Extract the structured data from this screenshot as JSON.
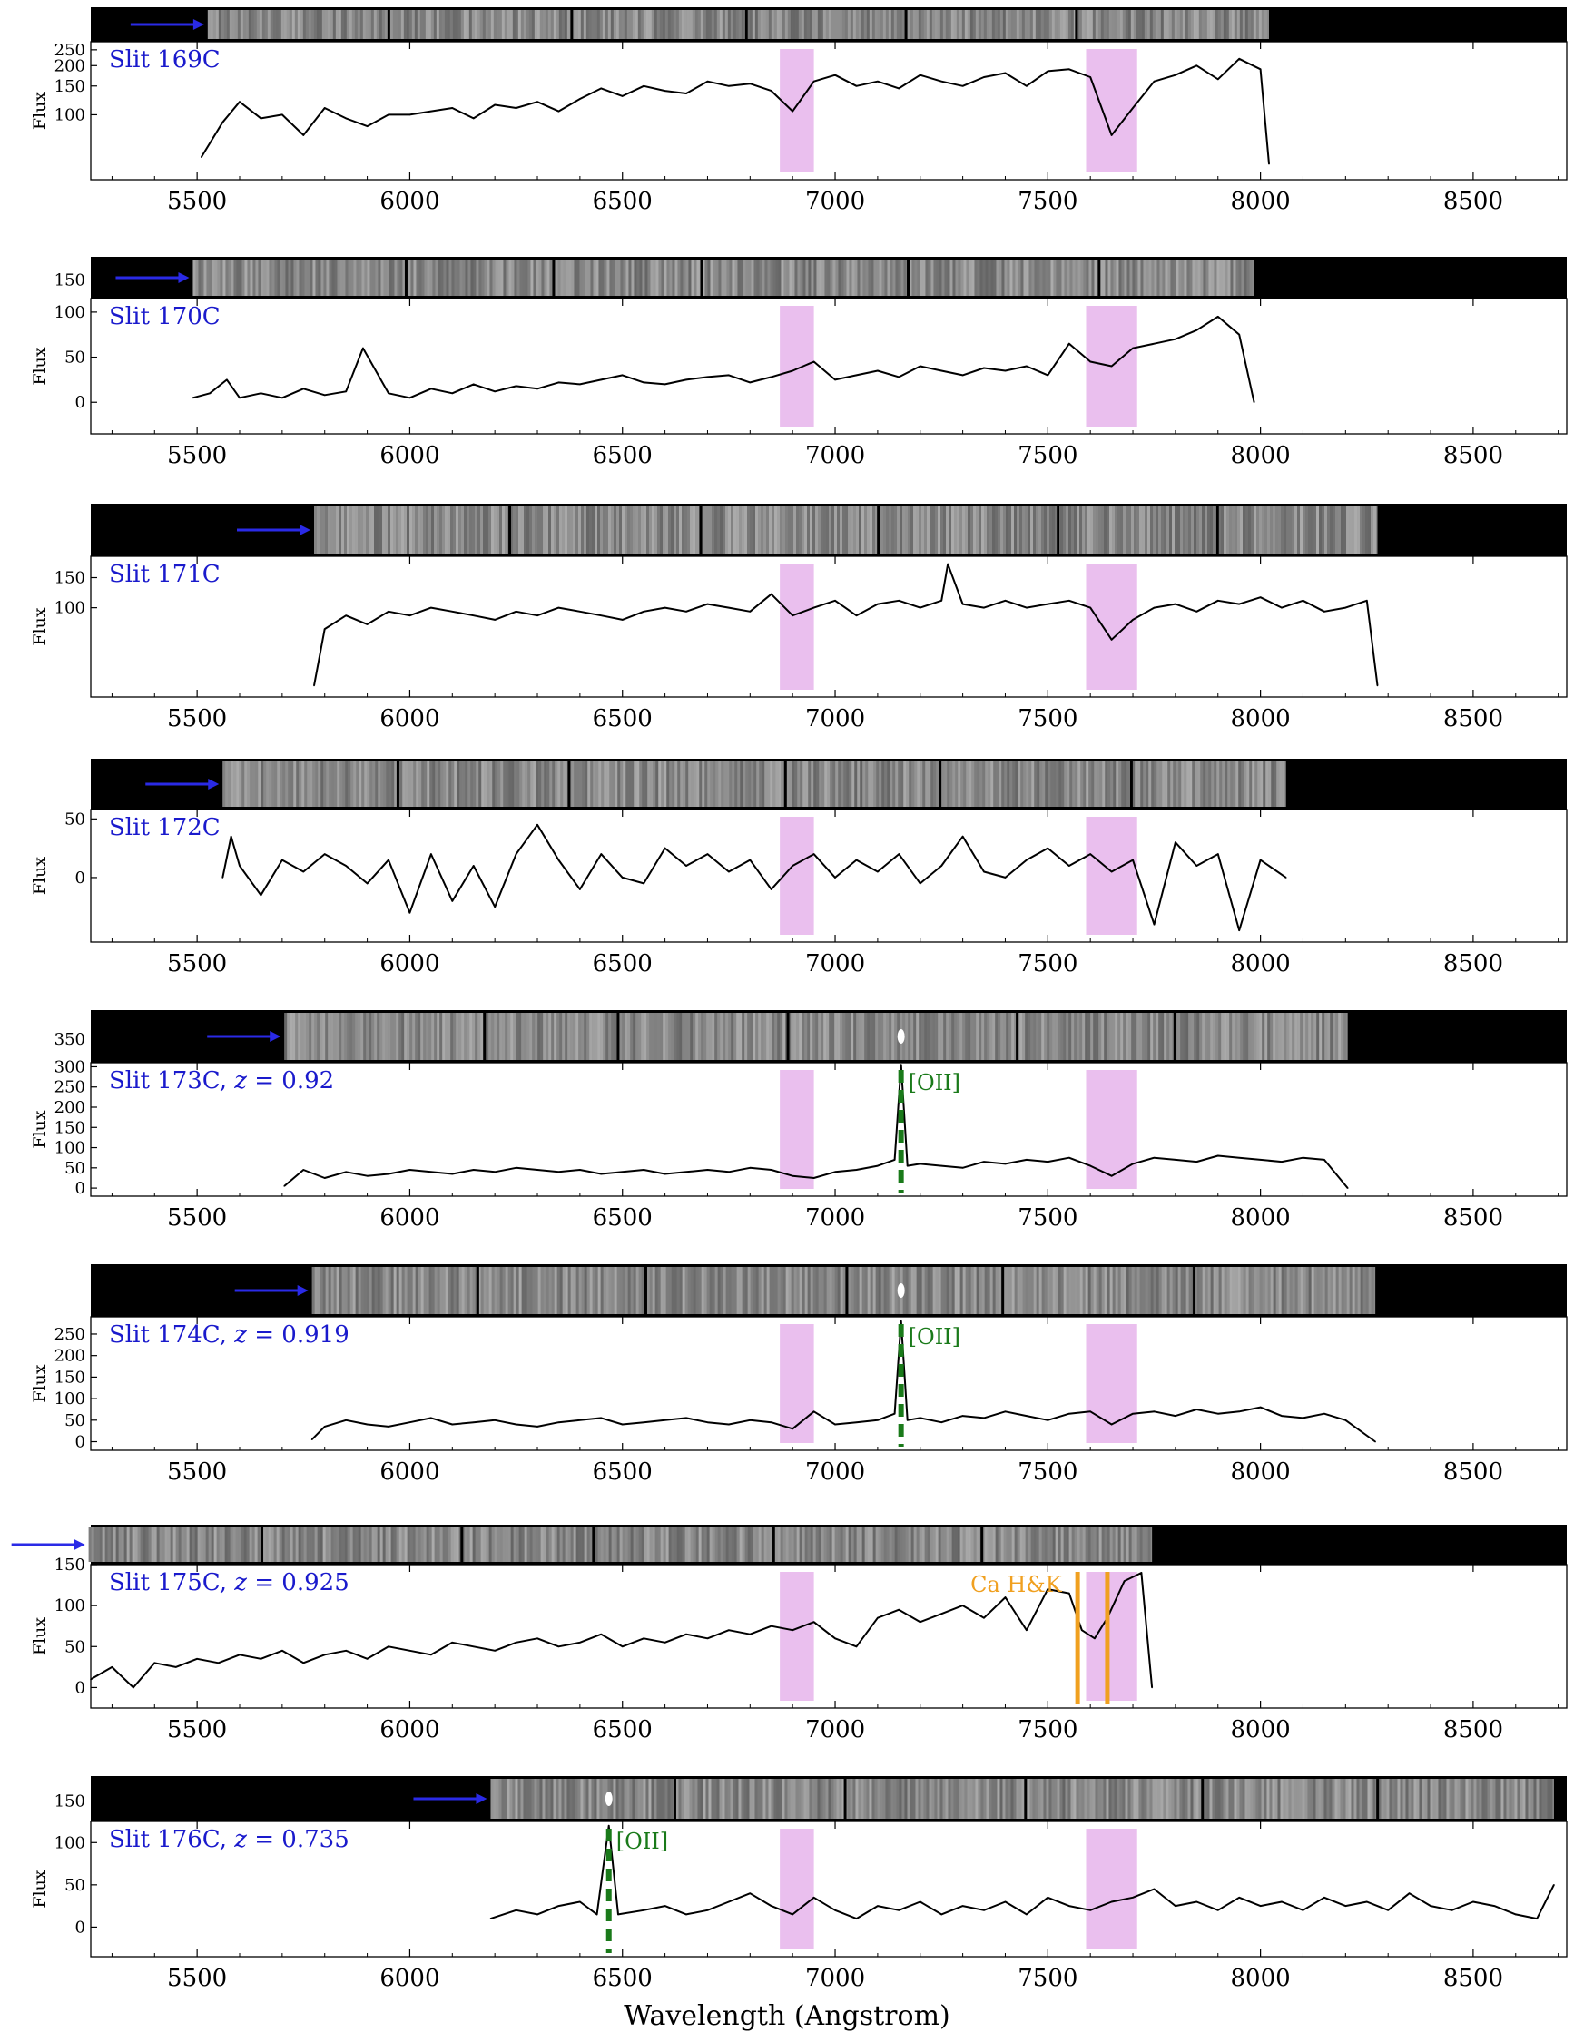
{
  "figure": {
    "xlabel": "Wavelength (Angstrom)",
    "colors": {
      "spectrum": "#000000",
      "telluric_band": "#e8b8ec",
      "slit_label": "#1a1acc",
      "arrow": "#2a2ae6",
      "oii_marker": "#1a7a1a",
      "cahk_marker": "#f0a020",
      "twod_background": "#000000",
      "twod_strip": "#8a8a8a"
    }
  },
  "chart_data": [
    {
      "type": "line",
      "title": "Slit 169C",
      "ylabel": "Flux",
      "yscale": "log",
      "xlim": [
        5250,
        8720
      ],
      "ylim": [
        40,
        280
      ],
      "yticks": [
        100,
        150,
        200,
        250
      ],
      "xticks": [
        5500,
        6000,
        6500,
        7000,
        7500,
        8000,
        8500
      ],
      "telluric_bands": [
        [
          6870,
          6950
        ],
        [
          7590,
          7710
        ]
      ],
      "twod_extent": [
        5525,
        8020
      ],
      "arrow_x": 5525,
      "x": [
        5510,
        5560,
        5600,
        5650,
        5700,
        5750,
        5800,
        5850,
        5900,
        5950,
        6000,
        6050,
        6100,
        6150,
        6200,
        6250,
        6300,
        6350,
        6400,
        6450,
        6500,
        6550,
        6600,
        6650,
        6700,
        6750,
        6800,
        6850,
        6900,
        6950,
        7000,
        7050,
        7100,
        7150,
        7200,
        7250,
        7300,
        7350,
        7400,
        7450,
        7500,
        7550,
        7600,
        7650,
        7700,
        7750,
        7800,
        7850,
        7900,
        7950,
        8000,
        8020
      ],
      "y": [
        55,
        90,
        120,
        95,
        100,
        75,
        110,
        95,
        85,
        100,
        100,
        105,
        110,
        95,
        115,
        110,
        120,
        105,
        125,
        145,
        130,
        150,
        140,
        135,
        160,
        150,
        155,
        140,
        105,
        160,
        175,
        150,
        160,
        145,
        175,
        160,
        150,
        170,
        180,
        150,
        185,
        190,
        170,
        75,
        110,
        160,
        175,
        200,
        165,
        220,
        190,
        50
      ]
    },
    {
      "type": "line",
      "title": "Slit 170C",
      "ylabel": "Flux",
      "xlim": [
        5250,
        8720
      ],
      "ylim": [
        -35,
        115
      ],
      "yticks": [
        0,
        50,
        100,
        150
      ],
      "xticks": [
        5500,
        6000,
        6500,
        7000,
        7500,
        8000,
        8500
      ],
      "telluric_bands": [
        [
          6870,
          6950
        ],
        [
          7590,
          7710
        ]
      ],
      "twod_extent": [
        5490,
        7985
      ],
      "arrow_x": 5490,
      "x": [
        5490,
        5530,
        5570,
        5600,
        5650,
        5700,
        5750,
        5800,
        5850,
        5890,
        5950,
        6000,
        6050,
        6100,
        6150,
        6200,
        6250,
        6300,
        6350,
        6400,
        6450,
        6500,
        6550,
        6600,
        6650,
        6700,
        6750,
        6800,
        6850,
        6900,
        6950,
        7000,
        7050,
        7100,
        7150,
        7200,
        7250,
        7300,
        7350,
        7400,
        7450,
        7500,
        7550,
        7600,
        7650,
        7700,
        7750,
        7800,
        7850,
        7900,
        7950,
        7985
      ],
      "y": [
        5,
        10,
        25,
        5,
        10,
        5,
        15,
        8,
        12,
        60,
        10,
        5,
        15,
        10,
        20,
        12,
        18,
        15,
        22,
        20,
        25,
        30,
        22,
        20,
        25,
        28,
        30,
        22,
        28,
        35,
        45,
        25,
        30,
        35,
        28,
        40,
        35,
        30,
        38,
        35,
        40,
        30,
        65,
        45,
        40,
        60,
        65,
        70,
        80,
        95,
        75,
        0
      ]
    },
    {
      "type": "line",
      "title": "Slit 171C",
      "ylabel": "Flux",
      "yscale": "log",
      "xlim": [
        5250,
        8720
      ],
      "ylim": [
        30,
        200
      ],
      "yticks": [
        100,
        150
      ],
      "xticks": [
        5500,
        6000,
        6500,
        7000,
        7500,
        8000,
        8500
      ],
      "telluric_bands": [
        [
          6870,
          6950
        ],
        [
          7590,
          7710
        ]
      ],
      "twod_extent": [
        5775,
        8275
      ],
      "arrow_x": 5775,
      "x": [
        5775,
        5800,
        5850,
        5900,
        5950,
        6000,
        6050,
        6100,
        6150,
        6200,
        6250,
        6300,
        6350,
        6400,
        6450,
        6500,
        6550,
        6600,
        6650,
        6700,
        6750,
        6800,
        6850,
        6900,
        6950,
        7000,
        7050,
        7100,
        7150,
        7200,
        7250,
        7265,
        7300,
        7350,
        7400,
        7450,
        7500,
        7550,
        7600,
        7650,
        7700,
        7750,
        7800,
        7850,
        7900,
        7950,
        8000,
        8050,
        8100,
        8150,
        8200,
        8250,
        8275
      ],
      "y": [
        35,
        75,
        90,
        80,
        95,
        90,
        100,
        95,
        90,
        85,
        95,
        90,
        100,
        95,
        90,
        85,
        95,
        100,
        95,
        105,
        100,
        95,
        120,
        90,
        100,
        110,
        90,
        105,
        110,
        100,
        110,
        180,
        105,
        100,
        110,
        100,
        105,
        110,
        100,
        65,
        85,
        100,
        105,
        95,
        110,
        105,
        115,
        100,
        110,
        95,
        100,
        110,
        35
      ]
    },
    {
      "type": "line",
      "title": "Slit 172C",
      "ylabel": "Flux",
      "xlim": [
        5250,
        8720
      ],
      "ylim": [
        -55,
        58
      ],
      "yticks": [
        0,
        50
      ],
      "xticks": [
        5500,
        6000,
        6500,
        7000,
        7500,
        8000,
        8500
      ],
      "telluric_bands": [
        [
          6870,
          6950
        ],
        [
          7590,
          7710
        ]
      ],
      "twod_extent": [
        5560,
        8060
      ],
      "arrow_x": 5560,
      "x": [
        5560,
        5580,
        5600,
        5650,
        5700,
        5750,
        5800,
        5850,
        5900,
        5950,
        6000,
        6050,
        6100,
        6150,
        6200,
        6250,
        6300,
        6350,
        6400,
        6450,
        6500,
        6550,
        6600,
        6650,
        6700,
        6750,
        6800,
        6850,
        6900,
        6950,
        7000,
        7050,
        7100,
        7150,
        7200,
        7250,
        7300,
        7350,
        7400,
        7450,
        7500,
        7550,
        7600,
        7650,
        7700,
        7750,
        7800,
        7850,
        7900,
        7950,
        8000,
        8060
      ],
      "y": [
        0,
        35,
        10,
        -15,
        15,
        5,
        20,
        10,
        -5,
        15,
        -30,
        20,
        -20,
        10,
        -25,
        20,
        45,
        15,
        -10,
        20,
        0,
        -5,
        25,
        10,
        20,
        5,
        15,
        -10,
        10,
        20,
        0,
        15,
        5,
        20,
        -5,
        10,
        35,
        5,
        0,
        15,
        25,
        10,
        20,
        5,
        15,
        -40,
        30,
        10,
        20,
        -45,
        15,
        0
      ]
    },
    {
      "type": "line",
      "title": "Slit 173C, z = 0.92",
      "title_parts": [
        "Slit 173C, ",
        "z",
        " = 0.92"
      ],
      "ylabel": "Flux",
      "xlim": [
        5250,
        8720
      ],
      "ylim": [
        -20,
        310
      ],
      "yticks": [
        0,
        50,
        100,
        150,
        200,
        250,
        300,
        350
      ],
      "xticks": [
        5500,
        6000,
        6500,
        7000,
        7500,
        8000,
        8500
      ],
      "telluric_bands": [
        [
          6870,
          6950
        ],
        [
          7590,
          7710
        ]
      ],
      "twod_extent": [
        5705,
        8205
      ],
      "arrow_x": 5705,
      "lines": [
        {
          "label": "[OII]",
          "x": 7155,
          "style": "dashed",
          "color": "oii"
        }
      ],
      "x": [
        5705,
        5750,
        5800,
        5850,
        5900,
        5950,
        6000,
        6050,
        6100,
        6150,
        6200,
        6250,
        6300,
        6350,
        6400,
        6450,
        6500,
        6550,
        6600,
        6650,
        6700,
        6750,
        6800,
        6850,
        6900,
        6950,
        7000,
        7050,
        7100,
        7140,
        7155,
        7170,
        7200,
        7250,
        7300,
        7350,
        7400,
        7450,
        7500,
        7550,
        7600,
        7650,
        7700,
        7750,
        7800,
        7850,
        7900,
        7950,
        8000,
        8050,
        8100,
        8150,
        8205
      ],
      "y": [
        5,
        45,
        25,
        40,
        30,
        35,
        45,
        40,
        35,
        45,
        40,
        50,
        45,
        40,
        45,
        35,
        40,
        45,
        35,
        40,
        45,
        40,
        50,
        45,
        30,
        25,
        40,
        45,
        55,
        70,
        305,
        55,
        60,
        55,
        50,
        65,
        60,
        70,
        65,
        75,
        55,
        30,
        60,
        75,
        70,
        65,
        80,
        75,
        70,
        65,
        75,
        70,
        0
      ]
    },
    {
      "type": "line",
      "title": "Slit 174C, z = 0.919",
      "title_parts": [
        "Slit 174C, ",
        "z",
        " = 0.919"
      ],
      "ylabel": "Flux",
      "xlim": [
        5250,
        8720
      ],
      "ylim": [
        -20,
        290
      ],
      "yticks": [
        0,
        50,
        100,
        150,
        200,
        250
      ],
      "xticks": [
        5500,
        6000,
        6500,
        7000,
        7500,
        8000,
        8500
      ],
      "telluric_bands": [
        [
          6870,
          6950
        ],
        [
          7590,
          7710
        ]
      ],
      "twod_extent": [
        5770,
        8270
      ],
      "arrow_x": 5770,
      "lines": [
        {
          "label": "[OII]",
          "x": 7155,
          "style": "dashed",
          "color": "oii"
        }
      ],
      "x": [
        5770,
        5800,
        5850,
        5900,
        5950,
        6000,
        6050,
        6100,
        6150,
        6200,
        6250,
        6300,
        6350,
        6400,
        6450,
        6500,
        6550,
        6600,
        6650,
        6700,
        6750,
        6800,
        6850,
        6900,
        6950,
        7000,
        7050,
        7100,
        7140,
        7155,
        7170,
        7200,
        7250,
        7300,
        7350,
        7400,
        7450,
        7500,
        7550,
        7600,
        7650,
        7700,
        7750,
        7800,
        7850,
        7900,
        7950,
        8000,
        8050,
        8100,
        8150,
        8200,
        8270
      ],
      "y": [
        5,
        35,
        50,
        40,
        35,
        45,
        55,
        40,
        45,
        50,
        40,
        35,
        45,
        50,
        55,
        40,
        45,
        50,
        55,
        45,
        40,
        50,
        45,
        30,
        70,
        40,
        45,
        50,
        65,
        280,
        50,
        55,
        45,
        60,
        55,
        70,
        60,
        50,
        65,
        70,
        40,
        65,
        70,
        60,
        75,
        65,
        70,
        80,
        60,
        55,
        65,
        50,
        0
      ]
    },
    {
      "type": "line",
      "title": "Slit 175C, z = 0.925",
      "title_parts": [
        "Slit 175C, ",
        "z",
        " = 0.925"
      ],
      "ylabel": "Flux",
      "xlim": [
        5250,
        8720
      ],
      "ylim": [
        -25,
        150
      ],
      "yticks": [
        0,
        50,
        100,
        150
      ],
      "xticks": [
        5500,
        6000,
        6500,
        7000,
        7500,
        8000,
        8500
      ],
      "telluric_bands": [
        [
          6870,
          6950
        ],
        [
          7590,
          7710
        ]
      ],
      "twod_extent": [
        5245,
        7745
      ],
      "arrow_x": 5245,
      "lines": [
        {
          "label": "Ca H&K",
          "x": 7570,
          "style": "solid",
          "color": "cahk"
        },
        {
          "label": "",
          "x": 7640,
          "style": "solid",
          "color": "cahk"
        }
      ],
      "x": [
        5250,
        5300,
        5350,
        5400,
        5450,
        5500,
        5550,
        5600,
        5650,
        5700,
        5750,
        5800,
        5850,
        5900,
        5950,
        6000,
        6050,
        6100,
        6150,
        6200,
        6250,
        6300,
        6350,
        6400,
        6450,
        6500,
        6550,
        6600,
        6650,
        6700,
        6750,
        6800,
        6850,
        6900,
        6950,
        7000,
        7050,
        7100,
        7150,
        7200,
        7250,
        7300,
        7350,
        7400,
        7450,
        7500,
        7550,
        7580,
        7610,
        7640,
        7680,
        7720,
        7745
      ],
      "y": [
        10,
        25,
        0,
        30,
        25,
        35,
        30,
        40,
        35,
        45,
        30,
        40,
        45,
        35,
        50,
        45,
        40,
        55,
        50,
        45,
        55,
        60,
        50,
        55,
        65,
        50,
        60,
        55,
        65,
        60,
        70,
        65,
        75,
        70,
        80,
        60,
        50,
        85,
        95,
        80,
        90,
        100,
        85,
        110,
        70,
        120,
        115,
        70,
        60,
        85,
        130,
        140,
        0
      ]
    },
    {
      "type": "line",
      "title": "Slit 176C, z = 0.735",
      "title_parts": [
        "Slit 176C, ",
        "z",
        " = 0.735"
      ],
      "ylabel": "Flux",
      "xlim": [
        5250,
        8720
      ],
      "ylim": [
        -35,
        125
      ],
      "yticks": [
        0,
        50,
        100,
        150
      ],
      "xticks": [
        5500,
        6000,
        6500,
        7000,
        7500,
        8000,
        8500
      ],
      "telluric_bands": [
        [
          6870,
          6950
        ],
        [
          7590,
          7710
        ]
      ],
      "twod_extent": [
        6190,
        8690
      ],
      "arrow_x": 6190,
      "lines": [
        {
          "label": "[OII]",
          "x": 6468,
          "style": "dashed",
          "color": "oii"
        }
      ],
      "x": [
        6190,
        6250,
        6300,
        6350,
        6400,
        6440,
        6468,
        6490,
        6550,
        6600,
        6650,
        6700,
        6750,
        6800,
        6850,
        6900,
        6950,
        7000,
        7050,
        7100,
        7150,
        7200,
        7250,
        7300,
        7350,
        7400,
        7450,
        7500,
        7550,
        7600,
        7650,
        7700,
        7750,
        7800,
        7850,
        7900,
        7950,
        8000,
        8050,
        8100,
        8150,
        8200,
        8250,
        8300,
        8350,
        8400,
        8450,
        8500,
        8550,
        8600,
        8650,
        8690
      ],
      "y": [
        10,
        20,
        15,
        25,
        30,
        15,
        120,
        15,
        20,
        25,
        15,
        20,
        30,
        40,
        25,
        15,
        35,
        20,
        10,
        25,
        20,
        30,
        15,
        25,
        20,
        30,
        15,
        35,
        25,
        20,
        30,
        35,
        45,
        25,
        30,
        20,
        35,
        25,
        30,
        20,
        35,
        25,
        30,
        20,
        40,
        25,
        20,
        30,
        25,
        15,
        10,
        50
      ]
    }
  ]
}
